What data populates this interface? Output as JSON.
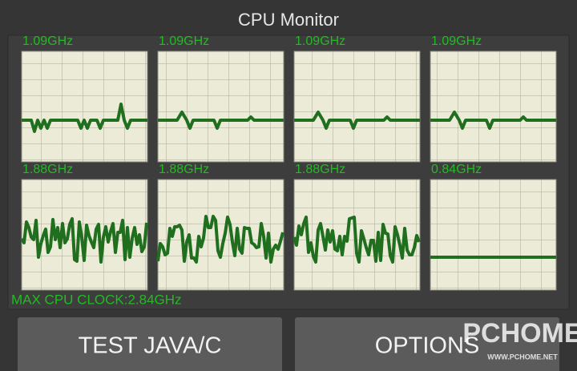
{
  "header": {
    "title": "CPU Monitor"
  },
  "cores": [
    {
      "label": "1.09GHz"
    },
    {
      "label": "1.09GHz"
    },
    {
      "label": "1.09GHz"
    },
    {
      "label": "1.09GHz"
    },
    {
      "label": "1.88GHz"
    },
    {
      "label": "1.88GHz"
    },
    {
      "label": "1.88GHz"
    },
    {
      "label": "0.84GHz"
    }
  ],
  "max_clock": "MAX CPU CLOCK:2.84GHz",
  "buttons": [
    {
      "label": "TEST JAVA/C"
    },
    {
      "label": "OPTIONS"
    }
  ],
  "watermark": {
    "brand": "PCHOME",
    "url": "WWW.PCHOME.NET"
  }
}
